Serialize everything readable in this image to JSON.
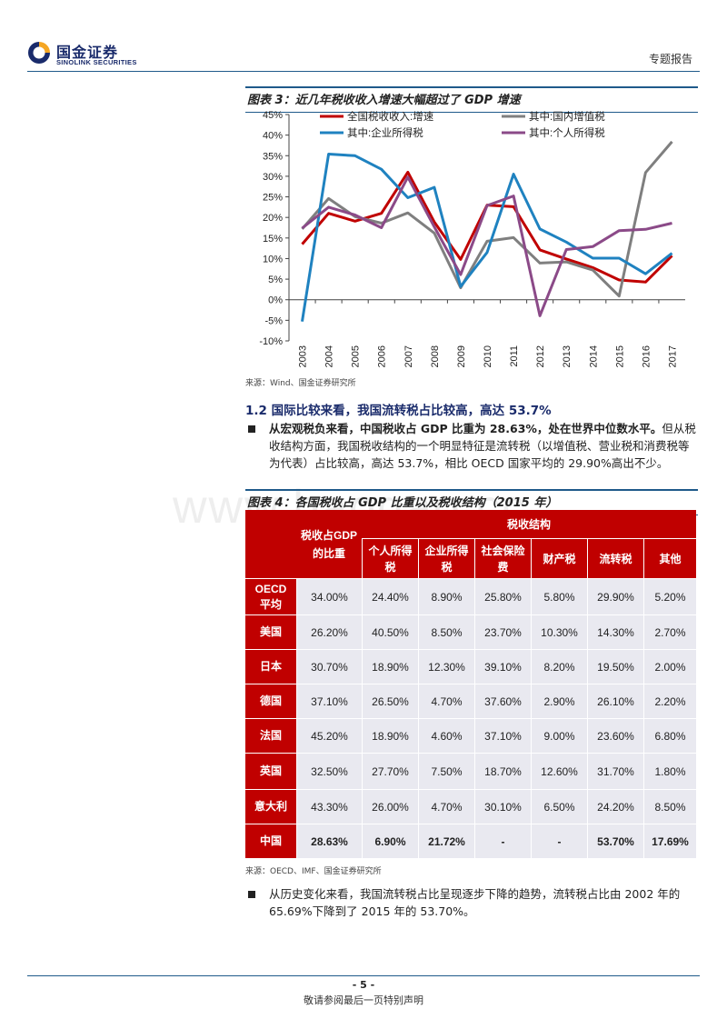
{
  "header": {
    "logo_cn": "国金证券",
    "logo_en": "SINOLINK SECURITIES",
    "report_type": "专题报告",
    "colors": {
      "brand_blue": "#1a2b6b",
      "rule": "#1f5a8a"
    }
  },
  "figure3": {
    "title": "图表 3：近几年税收收入增速大幅超过了 GDP 增速",
    "source": "来源：Wind、国金证券研究所"
  },
  "chart_data": {
    "type": "line",
    "title": "",
    "xlabel": "",
    "ylabel": "",
    "ylim": [
      -10,
      45
    ],
    "yticks": [
      "45%",
      "40%",
      "35%",
      "30%",
      "25%",
      "20%",
      "15%",
      "10%",
      "5%",
      "0%",
      "-5%",
      "-10%"
    ],
    "x": [
      "2003",
      "2004",
      "2005",
      "2006",
      "2007",
      "2008",
      "2009",
      "2010",
      "2011",
      "2012",
      "2013",
      "2014",
      "2015",
      "2016",
      "2017"
    ],
    "legend_placement": "top",
    "grid": false,
    "series": [
      {
        "name": "全国税收收入:增速",
        "color": "#c00000",
        "values": [
          13.5,
          21,
          19.1,
          21,
          31,
          18.9,
          9.8,
          23,
          22.6,
          12.1,
          9.9,
          7.8,
          4.8,
          4.3,
          10.7
        ]
      },
      {
        "name": "其中:国内增值税",
        "color": "#7f7f7f",
        "values": [
          17.2,
          24.6,
          20.2,
          18.6,
          21.1,
          16.2,
          2.9,
          14.2,
          15.1,
          8.9,
          9.2,
          7.2,
          0.9,
          30.9,
          38.4
        ]
      },
      {
        "name": "其中:企业所得税",
        "color": "#1f82c0",
        "values": [
          -5.3,
          35.4,
          35,
          31.7,
          24.8,
          27.3,
          3.2,
          11.5,
          30.5,
          17.2,
          14,
          10.1,
          10.1,
          6.3,
          11.3
        ]
      },
      {
        "name": "其中:个人所得税",
        "color": "#8b4a88",
        "values": [
          17.4,
          22.5,
          20.6,
          17.5,
          29.8,
          17.7,
          6.1,
          22.9,
          25.2,
          -3.9,
          12.2,
          12.9,
          16.8,
          17.1,
          18.6
        ]
      }
    ]
  },
  "section": {
    "heading": "1.2 国际比较来看，我国流转税占比较高，高达 53.7%"
  },
  "para1": {
    "lead": "从宏观税负来看，中国税收占 GDP 比重为 28.63%，处在世界中位数水平。",
    "body": "但从税收结构方面，我国税收结构的一个明显特征是流转税（以增值税、营业税和消费税等为代表）占比较高，高达 53.7%，相比 OECD 国家平均的 29.90%高出不少。"
  },
  "figure4": {
    "title": "图表 4：各国税收占 GDP 比重以及税收结构（2015 年）",
    "source": "来源：OECD、IMF、国金证券研究所",
    "col_gdp": "税收占GDP的比重",
    "col_group": "税收结构",
    "subcols": [
      "个人所得税",
      "企业所得税",
      "社会保险费",
      "财产税",
      "流转税",
      "其他"
    ],
    "rows": [
      {
        "country": "OECD平均",
        "values": [
          "34.00%",
          "24.40%",
          "8.90%",
          "25.80%",
          "5.80%",
          "29.90%",
          "5.20%"
        ]
      },
      {
        "country": "美国",
        "values": [
          "26.20%",
          "40.50%",
          "8.50%",
          "23.70%",
          "10.30%",
          "14.30%",
          "2.70%"
        ]
      },
      {
        "country": "日本",
        "values": [
          "30.70%",
          "18.90%",
          "12.30%",
          "39.10%",
          "8.20%",
          "19.50%",
          "2.00%"
        ]
      },
      {
        "country": "德国",
        "values": [
          "37.10%",
          "26.50%",
          "4.70%",
          "37.60%",
          "2.90%",
          "26.10%",
          "2.20%"
        ]
      },
      {
        "country": "法国",
        "values": [
          "45.20%",
          "18.90%",
          "4.60%",
          "37.10%",
          "9.00%",
          "23.60%",
          "6.80%"
        ]
      },
      {
        "country": "英国",
        "values": [
          "32.50%",
          "27.70%",
          "7.50%",
          "18.70%",
          "12.60%",
          "31.70%",
          "1.80%"
        ]
      },
      {
        "country": "意大利",
        "values": [
          "43.30%",
          "26.00%",
          "4.70%",
          "30.10%",
          "6.50%",
          "24.20%",
          "8.50%"
        ]
      },
      {
        "country": "中国",
        "values": [
          "28.63%",
          "6.90%",
          "21.72%",
          "-",
          "-",
          "53.70%",
          "17.69%"
        ]
      }
    ]
  },
  "para2": {
    "body": "从历史变化来看，我国流转税占比呈现逐步下降的趋势，流转税占比由 2002 年的 65.69%下降到了 2015 年的 53.70%。"
  },
  "footer": {
    "page": "- 5 -",
    "disclaimer": "敬请参阅最后一页特别声明"
  },
  "watermark": "www.baogao.cc"
}
